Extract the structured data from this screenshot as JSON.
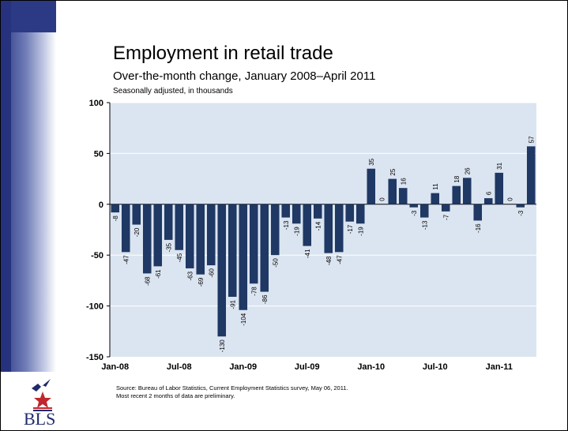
{
  "title": "Employment in retail trade",
  "subtitle": "Over-the-month change, January 2008–April 2011",
  "unit_note": "Seasonally adjusted, in thousands",
  "source_line1": "Source: Bureau of Labor Statistics, Current Employment Statistics survey, May 06, 2011.",
  "source_line2": "Most recent 2 months of data are preliminary.",
  "logo_text": "BLS",
  "colors": {
    "bar": "#1f3864",
    "plot_bg": "#dbe5f1",
    "grid": "#ffffff",
    "logo_star": "#c0272d",
    "logo_bird": "#1f2a6b"
  },
  "chart_data": {
    "type": "bar",
    "categories": [
      "Jan-08",
      "Feb-08",
      "Mar-08",
      "Apr-08",
      "May-08",
      "Jun-08",
      "Jul-08",
      "Aug-08",
      "Sep-08",
      "Oct-08",
      "Nov-08",
      "Dec-08",
      "Jan-09",
      "Feb-09",
      "Mar-09",
      "Apr-09",
      "May-09",
      "Jun-09",
      "Jul-09",
      "Aug-09",
      "Sep-09",
      "Oct-09",
      "Nov-09",
      "Dec-09",
      "Jan-10",
      "Feb-10",
      "Mar-10",
      "Apr-10",
      "May-10",
      "Jun-10",
      "Jul-10",
      "Aug-10",
      "Sep-10",
      "Oct-10",
      "Nov-10",
      "Dec-10",
      "Jan-11",
      "Feb-11",
      "Mar-11",
      "Apr-11"
    ],
    "values": [
      -8,
      -47,
      -20,
      -68,
      -61,
      -35,
      -45,
      -63,
      -69,
      -60,
      -130,
      -91,
      -104,
      -78,
      -86,
      -50,
      -13,
      -19,
      -41,
      -14,
      -48,
      -47,
      -17,
      -19,
      35,
      0,
      25,
      16,
      -3,
      -13,
      11,
      -7,
      18,
      26,
      -16,
      6,
      31,
      0,
      -3,
      57
    ],
    "x_tick_labels": [
      "Jan-08",
      "Jul-08",
      "Jan-09",
      "Jul-09",
      "Jan-10",
      "Jul-10",
      "Jan-11"
    ],
    "x_tick_index": [
      0,
      6,
      12,
      18,
      24,
      30,
      36
    ],
    "y_ticks": [
      100,
      50,
      0,
      -50,
      -100,
      -150
    ],
    "ylim": [
      -150,
      100
    ],
    "grid": true,
    "legend": "none"
  }
}
